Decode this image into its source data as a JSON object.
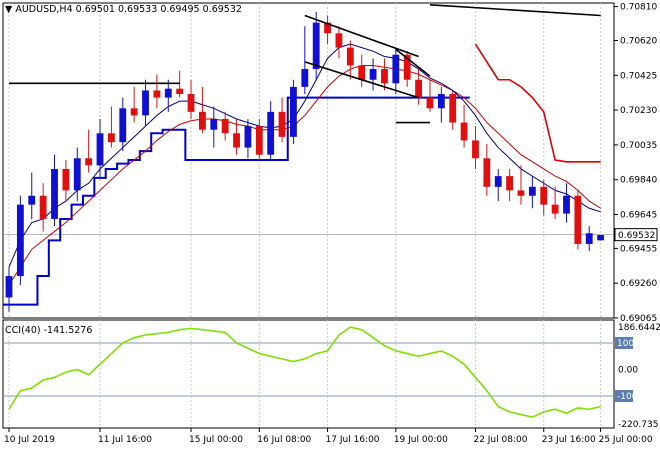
{
  "header": {
    "symbol": "AUDUSD,H4",
    "open": "0.69501",
    "high": "0.69533",
    "low": "0.69495",
    "close": "0.69532"
  },
  "cci_header": {
    "label": "CCI(40)",
    "value": "-141.5276"
  },
  "colors": {
    "bull": "#1010d0",
    "bear": "#e01010",
    "ema_fast": "#000080",
    "ema_slow": "#cc0000",
    "channel_upper": "#e00000",
    "channel_lower": "#0000cc",
    "cci": "#7fe000",
    "grid": "#c8c8d8",
    "trend": "#000000"
  },
  "chart_data": {
    "type": "candlestick",
    "symbol": "AUDUSD",
    "timeframe": "H4",
    "price_axis": {
      "range": [
        0.69065,
        0.7083
      ],
      "ticks": [
        "0.70810",
        "0.70620",
        "0.70425",
        "0.70230",
        "0.70035",
        "0.69840",
        "0.69645",
        "0.69455",
        "0.69260",
        "0.69065"
      ]
    },
    "last_price": "0.69532",
    "time_labels": [
      "10 Jul 2019",
      "11 Jul 16:00",
      "15 Jul 00:00",
      "16 Jul 08:00",
      "17 Jul 16:00",
      "19 Jul 00:00",
      "22 Jul 08:00",
      "23 Jul 16:00",
      "25 Jul 00:00"
    ],
    "candles": [
      [
        0.6918,
        0.6935,
        0.691,
        0.693
      ],
      [
        0.693,
        0.6975,
        0.6925,
        0.697
      ],
      [
        0.697,
        0.6988,
        0.6962,
        0.6975
      ],
      [
        0.6975,
        0.6982,
        0.6955,
        0.6962
      ],
      [
        0.6962,
        0.6998,
        0.6958,
        0.699
      ],
      [
        0.699,
        0.6995,
        0.6972,
        0.6978
      ],
      [
        0.6978,
        0.7002,
        0.6972,
        0.6996
      ],
      [
        0.6996,
        0.7012,
        0.6988,
        0.6992
      ],
      [
        0.6992,
        0.7018,
        0.6985,
        0.701
      ],
      [
        0.701,
        0.7025,
        0.7002,
        0.7005
      ],
      [
        0.7005,
        0.703,
        0.7,
        0.7024
      ],
      [
        0.7024,
        0.7036,
        0.7016,
        0.702
      ],
      [
        0.702,
        0.704,
        0.7014,
        0.7034
      ],
      [
        0.7034,
        0.7043,
        0.7024,
        0.703
      ],
      [
        0.703,
        0.704,
        0.7022,
        0.7035
      ],
      [
        0.7035,
        0.7045,
        0.703,
        0.7032
      ],
      [
        0.7032,
        0.704,
        0.7018,
        0.7022
      ],
      [
        0.7022,
        0.7036,
        0.701,
        0.7012
      ],
      [
        0.7012,
        0.7025,
        0.7002,
        0.7018
      ],
      [
        0.7018,
        0.7022,
        0.7006,
        0.701
      ],
      [
        0.701,
        0.7018,
        0.6998,
        0.7002
      ],
      [
        0.7002,
        0.7018,
        0.6996,
        0.7014
      ],
      [
        0.7014,
        0.7018,
        0.6995,
        0.6998
      ],
      [
        0.6998,
        0.7028,
        0.6995,
        0.7022
      ],
      [
        0.7022,
        0.703,
        0.7005,
        0.7008
      ],
      [
        0.7008,
        0.704,
        0.7004,
        0.7036
      ],
      [
        0.7036,
        0.707,
        0.7032,
        0.7046
      ],
      [
        0.7046,
        0.7078,
        0.704,
        0.7072
      ],
      [
        0.7072,
        0.7076,
        0.706,
        0.7066
      ],
      [
        0.7066,
        0.707,
        0.7052,
        0.7058
      ],
      [
        0.7058,
        0.7062,
        0.704,
        0.7048
      ],
      [
        0.7048,
        0.7054,
        0.7036,
        0.704
      ],
      [
        0.704,
        0.7052,
        0.7034,
        0.7046
      ],
      [
        0.7046,
        0.7052,
        0.7034,
        0.7038
      ],
      [
        0.7038,
        0.7058,
        0.7032,
        0.7054
      ],
      [
        0.7054,
        0.7056,
        0.7036,
        0.704
      ],
      [
        0.704,
        0.7046,
        0.7026,
        0.703
      ],
      [
        0.703,
        0.704,
        0.7022,
        0.7024
      ],
      [
        0.7024,
        0.7036,
        0.7016,
        0.7032
      ],
      [
        0.7032,
        0.7034,
        0.7012,
        0.7016
      ],
      [
        0.7016,
        0.7026,
        0.7002,
        0.7006
      ],
      [
        0.7006,
        0.7014,
        0.699,
        0.6996
      ],
      [
        0.6996,
        0.7004,
        0.6975,
        0.698
      ],
      [
        0.698,
        0.699,
        0.6972,
        0.6986
      ],
      [
        0.6986,
        0.699,
        0.6972,
        0.6978
      ],
      [
        0.6978,
        0.6992,
        0.697,
        0.6975
      ],
      [
        0.6975,
        0.6986,
        0.6968,
        0.698
      ],
      [
        0.698,
        0.6984,
        0.6964,
        0.697
      ],
      [
        0.697,
        0.698,
        0.6962,
        0.6965
      ],
      [
        0.6965,
        0.6982,
        0.696,
        0.6975
      ],
      [
        0.6975,
        0.6978,
        0.6945,
        0.6948
      ],
      [
        0.6948,
        0.6958,
        0.6944,
        0.6954
      ],
      [
        0.695,
        0.6953,
        0.695,
        0.6953
      ]
    ],
    "cci_indicator": {
      "name": "CCI(40)",
      "axis_ticks": [
        "186.6442",
        "100",
        "0.00",
        "-100",
        "-220.735"
      ],
      "range": [
        -220.735,
        186.6442
      ],
      "levels": [
        100,
        -100
      ],
      "values": [
        -150,
        -80,
        -70,
        -40,
        -30,
        -10,
        0,
        -20,
        20,
        60,
        100,
        120,
        130,
        135,
        140,
        150,
        155,
        150,
        145,
        140,
        100,
        80,
        60,
        50,
        40,
        30,
        40,
        60,
        70,
        130,
        160,
        150,
        120,
        90,
        70,
        60,
        50,
        60,
        70,
        50,
        20,
        -30,
        -80,
        -140,
        -160,
        -170,
        -180,
        -160,
        -150,
        -165,
        -145,
        -150,
        -140
      ]
    },
    "ema_fast": [
      0.6935,
      0.695,
      0.696,
      0.6962,
      0.6968,
      0.6972,
      0.6978,
      0.6982,
      0.699,
      0.6996,
      0.7002,
      0.7008,
      0.7014,
      0.702,
      0.7025,
      0.7028,
      0.7028,
      0.7026,
      0.7024,
      0.7021,
      0.7018,
      0.7016,
      0.7014,
      0.7013,
      0.7014,
      0.7018,
      0.7028,
      0.704,
      0.7052,
      0.7058,
      0.706,
      0.7058,
      0.7056,
      0.7053,
      0.7052,
      0.705,
      0.7046,
      0.7041,
      0.7038,
      0.7034,
      0.7028,
      0.702,
      0.701,
      0.7002,
      0.6996,
      0.699,
      0.6986,
      0.6982,
      0.6978,
      0.6976,
      0.6972,
      0.6968,
      0.6966
    ],
    "ema_slow": [
      0.6925,
      0.6935,
      0.6945,
      0.695,
      0.6955,
      0.696,
      0.6966,
      0.6972,
      0.6978,
      0.6984,
      0.699,
      0.6995,
      0.7,
      0.7006,
      0.7011,
      0.7015,
      0.7017,
      0.7018,
      0.7018,
      0.7017,
      0.7015,
      0.7014,
      0.7012,
      0.7012,
      0.7012,
      0.7014,
      0.702,
      0.7028,
      0.7036,
      0.7042,
      0.7046,
      0.7048,
      0.7048,
      0.7047,
      0.7046,
      0.7045,
      0.7043,
      0.704,
      0.7037,
      0.7034,
      0.703,
      0.7024,
      0.7016,
      0.701,
      0.7004,
      0.6998,
      0.6994,
      0.699,
      0.6986,
      0.6983,
      0.6978,
      0.6972,
      0.6968
    ],
    "channel_upper": [
      null,
      null,
      null,
      null,
      null,
      null,
      null,
      null,
      null,
      null,
      null,
      null,
      null,
      null,
      null,
      null,
      null,
      null,
      null,
      null,
      null,
      null,
      null,
      null,
      null,
      null,
      null,
      null,
      null,
      null,
      null,
      null,
      null,
      null,
      null,
      null,
      null,
      null,
      null,
      null,
      null,
      0.706,
      0.705,
      0.704,
      0.704,
      0.7036,
      0.703,
      0.7022,
      0.6995,
      0.6994,
      0.6994,
      0.6994,
      0.6994
    ],
    "channel_lower": [
      0.6914,
      0.6914,
      0.6914,
      0.693,
      0.695,
      0.6962,
      0.697,
      0.6975,
      0.6985,
      0.699,
      0.6993,
      0.6995,
      0.7,
      0.701,
      0.7012,
      0.7012,
      0.6995,
      0.6995,
      0.6995,
      0.6995,
      0.6995,
      0.6995,
      0.6995,
      0.6995,
      0.6995,
      0.703,
      0.703,
      0.703,
      0.703,
      0.703,
      0.703,
      0.703,
      0.703,
      0.703,
      0.703,
      0.703,
      0.703,
      0.703,
      0.703,
      0.703,
      0.703,
      null,
      null,
      null,
      null,
      null,
      null,
      null,
      null,
      null,
      null,
      null,
      null
    ],
    "trendlines": [
      {
        "from": [
          0,
          0.7038
        ],
        "to": [
          15,
          0.7038
        ]
      },
      {
        "from": [
          26,
          0.7076
        ],
        "to": [
          36,
          0.7053
        ]
      },
      {
        "from": [
          26,
          0.705
        ],
        "to": [
          36,
          0.703
        ]
      },
      {
        "from": [
          34,
          0.7057
        ],
        "to": [
          37,
          0.7042
        ]
      },
      {
        "from": [
          34,
          0.7016
        ],
        "to": [
          37,
          0.7016
        ]
      },
      {
        "from": [
          37,
          0.7082
        ],
        "to": [
          52,
          0.7076
        ]
      }
    ]
  }
}
